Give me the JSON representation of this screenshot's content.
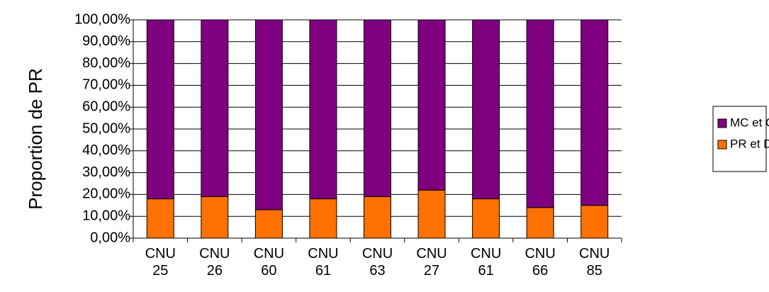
{
  "chart_data": {
    "type": "bar",
    "stacked": true,
    "title": "",
    "xlabel": "",
    "ylabel": "Proportion de PR",
    "ylim": [
      0,
      100
    ],
    "yticks": [
      "0,00%",
      "10,00%",
      "20,00%",
      "30,00%",
      "40,00%",
      "50,00%",
      "60,00%",
      "70,00%",
      "80,00%",
      "90,00%",
      "100,00%"
    ],
    "categories": [
      [
        "CNU",
        "25"
      ],
      [
        "CNU",
        "26"
      ],
      [
        "CNU",
        "60"
      ],
      [
        "CNU",
        "61"
      ],
      [
        "CNU",
        "63"
      ],
      [
        "CNU",
        "27"
      ],
      [
        "CNU",
        "61"
      ],
      [
        "CNU",
        "66"
      ],
      [
        "CNU",
        "85"
      ]
    ],
    "series": [
      {
        "name": "PR et DR F",
        "color": "#ff7100",
        "values": [
          18,
          19,
          13,
          18,
          19,
          22,
          18,
          14,
          15
        ]
      },
      {
        "name": "MC et CR F",
        "color": "#7f007f",
        "values": [
          82,
          81,
          87,
          82,
          81,
          78,
          82,
          86,
          85
        ]
      }
    ],
    "legend_order": [
      "MC et CR F",
      "PR et DR F"
    ],
    "grid": true,
    "legend_position": "right"
  }
}
